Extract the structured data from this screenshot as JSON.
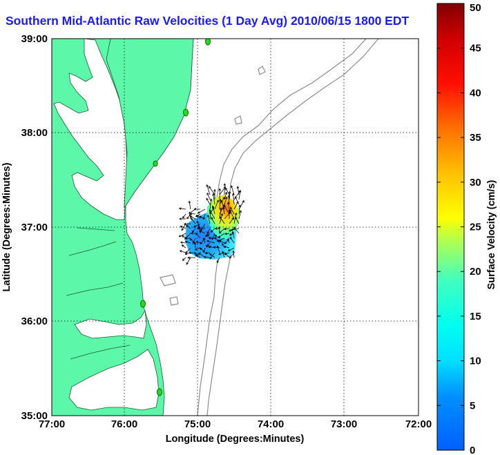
{
  "title": "Southern Mid-Atlantic Raw Velocities (1 Day Avg) 2010/06/15 1800 EDT",
  "map": {
    "xlabel": "Longitude (Degrees:Minutes)",
    "ylabel": "Latitude (Degrees:Minutes)",
    "x_ticks": [
      "77:00",
      "76:00",
      "75:00",
      "74:00",
      "73:00",
      "72:00"
    ],
    "y_ticks": [
      "39:00",
      "38:00",
      "37:00",
      "36:00",
      "35:00"
    ],
    "lon_range_west": [
      77,
      72
    ],
    "lat_range": [
      35,
      39
    ],
    "grid": "dotted",
    "colors": {
      "land": "#5cf7a8",
      "water": "#ffffff",
      "bathymetry": "#8c8c8c",
      "title": "#1a1aff",
      "stations": "#22dd22"
    }
  },
  "colorbar": {
    "label": "Surface Velocity (cm/s)",
    "ticks": [
      "0",
      "5",
      "10",
      "15",
      "20",
      "25",
      "30",
      "35",
      "40",
      "45",
      "50"
    ],
    "range": [
      0,
      50
    ],
    "colormap": "jet"
  }
}
